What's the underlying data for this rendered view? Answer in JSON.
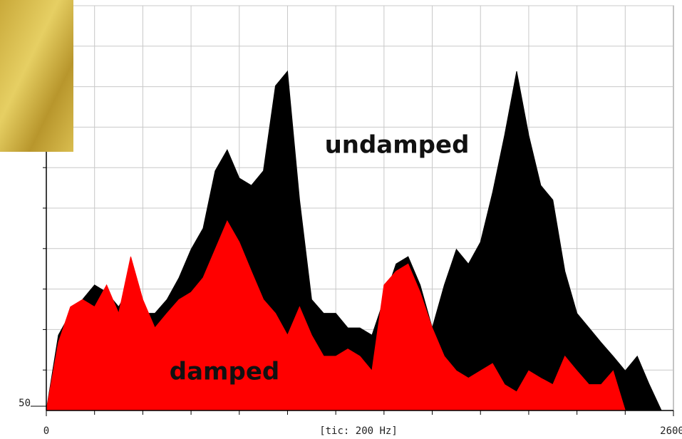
{
  "chart_data": {
    "type": "area",
    "x": [
      0,
      50,
      100,
      150,
      200,
      250,
      300,
      350,
      400,
      450,
      500,
      550,
      600,
      650,
      700,
      750,
      800,
      850,
      900,
      950,
      1000,
      1050,
      1100,
      1150,
      1200,
      1250,
      1300,
      1350,
      1400,
      1450,
      1500,
      1550,
      1600,
      1650,
      1700,
      1750,
      1800,
      1850,
      1900,
      1950,
      2000,
      2050,
      2100,
      2150,
      2200,
      2250,
      2300,
      2350,
      2400,
      2450,
      2500,
      2550,
      2600
    ],
    "series": [
      {
        "name": "undamped",
        "color": "#000000",
        "values": [
          50,
          59.3,
          62.0,
          63.7,
          65.5,
          64.6,
          62.8,
          65.5,
          62.0,
          62.0,
          63.7,
          66.4,
          69.9,
          72.5,
          79.6,
          82.2,
          78.7,
          77.8,
          79.6,
          90.1,
          91.9,
          76.0,
          63.7,
          62.0,
          62.0,
          60.2,
          60.2,
          59.3,
          63.7,
          68.1,
          69.0,
          65.5,
          60.2,
          65.5,
          69.9,
          68.1,
          70.8,
          76.9,
          84.0,
          91.9,
          84.0,
          77.8,
          76.0,
          67.2,
          62.0,
          60.2,
          58.4,
          56.7,
          54.9,
          56.7,
          53.2,
          50,
          50
        ]
      },
      {
        "name": "damped",
        "color": "#ff0000",
        "values": [
          50,
          58.4,
          62.8,
          63.7,
          62.8,
          65.5,
          62.0,
          69.0,
          63.7,
          60.2,
          62.0,
          63.7,
          64.6,
          66.4,
          69.9,
          73.4,
          70.8,
          67.2,
          63.7,
          62.0,
          59.3,
          62.8,
          59.3,
          56.7,
          56.7,
          57.6,
          56.7,
          54.9,
          65.5,
          67.2,
          68.1,
          64.6,
          60.2,
          56.7,
          54.9,
          54.0,
          54.9,
          55.8,
          53.2,
          52.3,
          54.9,
          54.0,
          53.2,
          56.7,
          54.9,
          53.2,
          53.2,
          54.9,
          50,
          50,
          50,
          50,
          50
        ]
      }
    ],
    "xlim": [
      0,
      2600
    ],
    "xticks": [
      0,
      2600
    ],
    "xgrid": [
      200,
      400,
      600,
      800,
      1000,
      1200,
      1400,
      1600,
      1800,
      2000,
      2200,
      2400
    ],
    "ylim": [
      50,
      100
    ],
    "yticks": [
      50
    ],
    "ygrid": [
      55,
      60,
      65,
      70,
      75,
      80,
      85,
      90,
      95,
      100
    ],
    "grid": true,
    "annotations": [
      {
        "text": "[tic: 200 Hz]"
      },
      {
        "text": "undamped"
      },
      {
        "text": "damped"
      }
    ]
  }
}
